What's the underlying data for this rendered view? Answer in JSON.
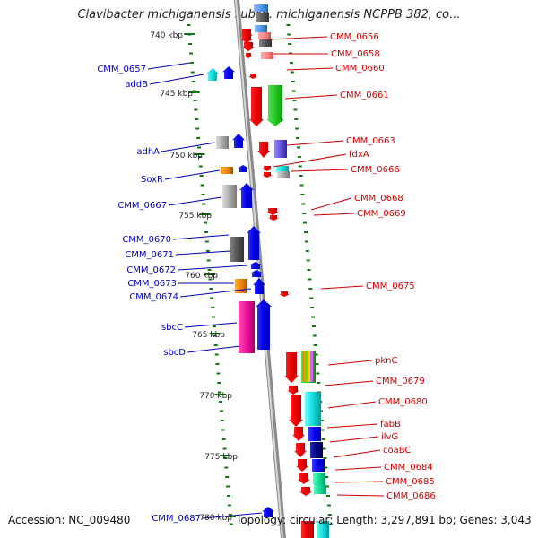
{
  "title": "Clavibacter michiganensis subsp. michiganensis NCPPB 382, co...",
  "footer": {
    "accession": "Accession: NC_009480",
    "summary": "Topology: circular; Length: 3,297,891 bp; Genes: 3,043"
  },
  "colors": {
    "backbone": "#999999",
    "tick": "#117711",
    "forward_label": "#0000bb",
    "reverse_label": "#cc0000"
  },
  "scale_labels": [
    "740 kbp",
    "745 kbp",
    "750 kbp",
    "755 kbp",
    "760 kbp",
    "765 kbp",
    "770 kbp",
    "775 kbp",
    "780 kbp"
  ],
  "forward_labels": [
    "CMM_0657",
    "addB",
    "adhA",
    "SoxR",
    "CMM_0667",
    "CMM_0670",
    "CMM_0671",
    "CMM_0672",
    "CMM_0673",
    "CMM_0674",
    "sbcC",
    "sbcD",
    "CMM_0687"
  ],
  "reverse_labels": [
    "CMM_0656",
    "CMM_0658",
    "CMM_0660",
    "CMM_0661",
    "CMM_0663",
    "fdxA",
    "CMM_0666",
    "CMM_0668",
    "CMM_0669",
    "CMM_0675",
    "pknC",
    "CMM_0679",
    "CMM_0680",
    "fabB",
    "ilvG",
    "coaBC",
    "CMM_0684",
    "CMM_0685",
    "CMM_0686"
  ]
}
